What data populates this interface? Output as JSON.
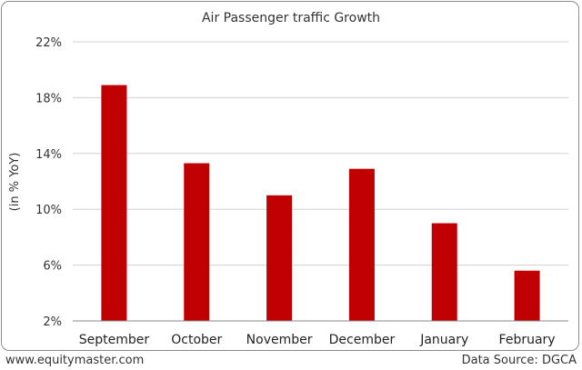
{
  "chart_data": {
    "type": "bar",
    "title": "Air Passenger traffic Growth",
    "ylabel": "(in % YoY)",
    "xlabel": "",
    "categories": [
      "September",
      "October",
      "November",
      "December",
      "January",
      "February"
    ],
    "values": [
      18.9,
      13.3,
      11.0,
      12.9,
      9.0,
      5.6
    ],
    "ylim": [
      2,
      22
    ],
    "yticks": [
      2,
      6,
      10,
      14,
      18,
      22
    ],
    "ytick_labels": [
      "2%",
      "6%",
      "10%",
      "14%",
      "18%",
      "22%"
    ],
    "grid": true,
    "legend": "none",
    "bar_color": "#c00000"
  },
  "footer": {
    "left": "www.equitymaster.com",
    "right": "Data Source: DGCA"
  }
}
